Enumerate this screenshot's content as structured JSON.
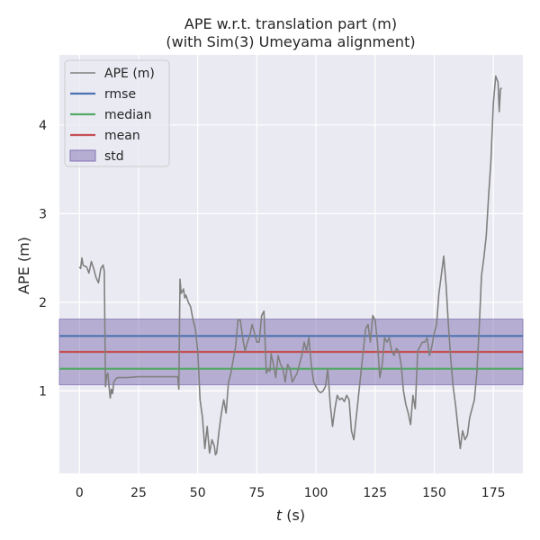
{
  "chart_data": {
    "type": "line",
    "title": [
      "APE w.r.t. translation part (m)",
      "(with Sim(3) Umeyama alignment)"
    ],
    "xlabel_var": "t",
    "xlabel_unit": "(s)",
    "ylabel": "APE (m)",
    "xlim": [
      -8.5,
      187.5
    ],
    "ylim": [
      0.07,
      4.79
    ],
    "xticks": [
      0,
      25,
      50,
      75,
      100,
      125,
      150,
      175
    ],
    "yticks": [
      1,
      2,
      3,
      4
    ],
    "grid": true,
    "legend_position": "top-left",
    "background": "#eaeaf2",
    "series": [
      {
        "name": "APE (m)",
        "color": "#808080",
        "x": [
          0,
          0.5,
          1,
          1.5,
          2,
          3,
          4,
          5,
          6,
          7,
          8,
          9,
          10,
          10.5,
          11,
          11.5,
          12,
          12.5,
          13,
          13.5,
          14,
          14.5,
          15,
          15.5,
          16,
          17,
          20,
          25,
          30,
          35,
          40,
          41.5,
          42,
          42.5,
          43,
          43.5,
          44,
          44.5,
          45,
          46,
          47,
          48,
          49,
          50,
          51,
          52,
          53,
          54,
          55,
          56,
          57,
          57.5,
          58,
          59,
          60,
          61,
          62,
          63,
          64,
          65,
          66,
          67,
          68,
          69,
          70,
          71,
          72,
          73,
          74,
          75,
          76,
          77,
          78,
          79,
          80,
          80.5,
          81,
          82,
          83,
          84,
          85,
          86,
          87,
          88,
          89,
          90,
          91,
          92,
          93,
          94,
          95,
          96,
          97,
          98,
          99,
          100,
          101,
          102,
          103,
          104,
          105,
          106,
          107,
          108,
          109,
          110,
          111,
          112,
          113,
          114,
          115,
          116,
          117,
          118,
          119,
          120,
          121,
          122,
          123,
          124,
          125,
          126,
          127,
          128,
          129,
          130,
          131,
          132,
          133,
          134,
          135,
          136,
          137,
          138,
          139,
          140,
          141,
          142,
          143,
          144,
          145,
          146,
          147,
          148,
          149,
          150,
          151,
          152,
          153,
          154,
          155,
          156,
          157,
          158,
          159,
          160,
          161,
          162,
          163,
          164,
          165,
          166,
          167,
          168,
          169,
          170,
          171,
          172,
          173,
          174,
          175,
          176,
          177,
          177.5,
          178,
          178.5
        ],
        "values": [
          2.4,
          2.38,
          2.5,
          2.42,
          2.41,
          2.4,
          2.33,
          2.46,
          2.38,
          2.28,
          2.22,
          2.38,
          2.42,
          2.35,
          1.05,
          1.18,
          1.2,
          1.05,
          0.92,
          1.02,
          0.97,
          1.1,
          1.12,
          1.14,
          1.15,
          1.15,
          1.15,
          1.16,
          1.16,
          1.16,
          1.16,
          1.16,
          1.02,
          2.26,
          2.1,
          2.12,
          2.15,
          2.05,
          2.08,
          2.0,
          1.95,
          1.8,
          1.7,
          1.45,
          0.9,
          0.7,
          0.35,
          0.6,
          0.3,
          0.45,
          0.38,
          0.28,
          0.3,
          0.55,
          0.75,
          0.9,
          0.75,
          1.1,
          1.2,
          1.35,
          1.5,
          1.8,
          1.8,
          1.6,
          1.45,
          1.55,
          1.62,
          1.75,
          1.65,
          1.55,
          1.55,
          1.85,
          1.9,
          1.2,
          1.25,
          1.22,
          1.42,
          1.3,
          1.15,
          1.4,
          1.3,
          1.25,
          1.1,
          1.3,
          1.25,
          1.1,
          1.15,
          1.2,
          1.3,
          1.4,
          1.55,
          1.45,
          1.6,
          1.3,
          1.1,
          1.05,
          1.0,
          0.98,
          1.0,
          1.05,
          1.25,
          0.85,
          0.6,
          0.8,
          0.95,
          0.9,
          0.92,
          0.88,
          0.95,
          0.9,
          0.55,
          0.45,
          0.7,
          0.95,
          1.2,
          1.45,
          1.7,
          1.75,
          1.55,
          1.85,
          1.8,
          1.55,
          1.15,
          1.3,
          1.6,
          1.55,
          1.6,
          1.45,
          1.4,
          1.48,
          1.45,
          1.3,
          1.0,
          0.85,
          0.75,
          0.62,
          0.95,
          0.8,
          1.45,
          1.5,
          1.55,
          1.55,
          1.6,
          1.4,
          1.5,
          1.65,
          1.75,
          2.1,
          2.3,
          2.52,
          2.2,
          1.75,
          1.35,
          1.05,
          0.85,
          0.6,
          0.35,
          0.55,
          0.45,
          0.5,
          0.7,
          0.8,
          0.9,
          1.2,
          1.7,
          2.3,
          2.5,
          2.75,
          3.2,
          3.6,
          4.25,
          4.55,
          4.48,
          4.15,
          4.4,
          4.42
        ]
      },
      {
        "name": "rmse",
        "color": "#4c72b0",
        "value": 1.62
      },
      {
        "name": "median",
        "color": "#55a868",
        "value": 1.25
      },
      {
        "name": "mean",
        "color": "#c44e52",
        "value": 1.44
      },
      {
        "name": "std",
        "color": "#8172b2",
        "band": [
          1.07,
          1.81
        ]
      }
    ]
  }
}
